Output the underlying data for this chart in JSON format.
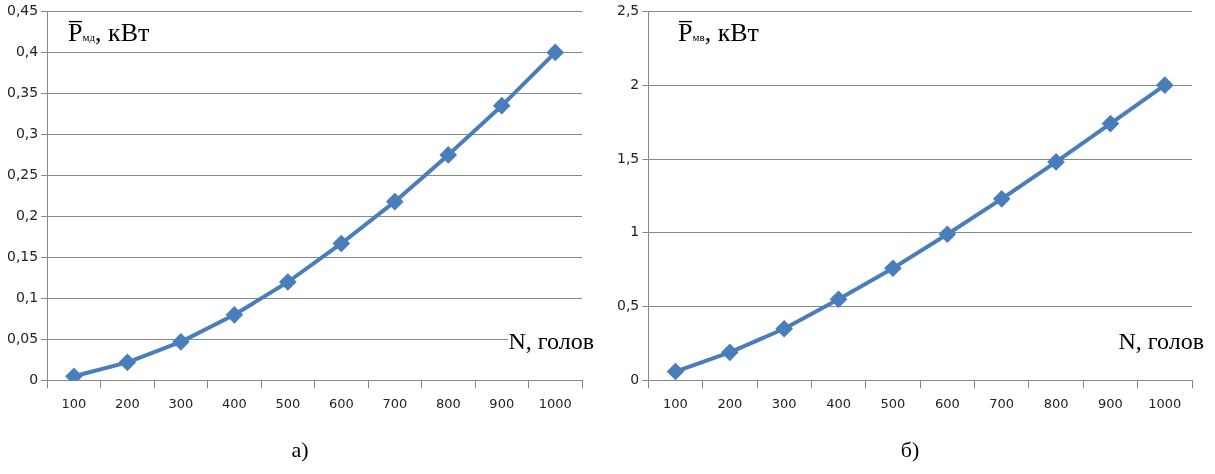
{
  "chart_data": [
    {
      "type": "line",
      "title": "а)",
      "ylabel": "P̅$_{мд}$, кВт",
      "xlabel": "N, голов",
      "categories": [
        "100",
        "200",
        "300",
        "400",
        "500",
        "600",
        "700",
        "800",
        "900",
        "1000"
      ],
      "series": [
        {
          "color": "#4a7ebb",
          "values": [
            0.005,
            0.022,
            0.047,
            0.08,
            0.12,
            0.167,
            0.218,
            0.275,
            0.335,
            0.4
          ]
        }
      ],
      "ylim": [
        0,
        0.45
      ],
      "yticks": [
        0,
        {
          "value": 0.05,
          "label": "0,05"
        },
        {
          "value": 0.1,
          "label": "0,1"
        },
        {
          "value": 0.15,
          "label": "0,15"
        },
        {
          "value": 0.2,
          "label": "0,2"
        },
        {
          "value": 0.25,
          "label": "0,25"
        },
        {
          "value": 0.3,
          "label": "0,3"
        },
        {
          "value": 0.35,
          "label": "0,35"
        },
        {
          "value": 0.4,
          "label": "0,4"
        },
        {
          "value": 0.45,
          "label": "0,45"
        }
      ],
      "grid": "y",
      "legend": false,
      "marker": "diamond",
      "line_style": "solid"
    },
    {
      "type": "line",
      "title": "б)",
      "ylabel": "P̅$_{мв}$, кВт",
      "xlabel": "N, голов",
      "categories": [
        "100",
        "200",
        "300",
        "400",
        "500",
        "600",
        "700",
        "800",
        "900",
        "1000"
      ],
      "series": [
        {
          "color": "#4a7ebb",
          "values": [
            0.06,
            0.19,
            0.35,
            0.55,
            0.76,
            0.99,
            1.23,
            1.48,
            1.74,
            2.0
          ]
        }
      ],
      "ylim": [
        0,
        2.5
      ],
      "yticks": [
        0,
        {
          "value": 0.5,
          "label": "0,5"
        },
        1,
        {
          "value": 1.5,
          "label": "1,5"
        },
        2,
        {
          "value": 2.5,
          "label": "2,5"
        }
      ],
      "grid": "y",
      "legend": false,
      "marker": "diamond",
      "line_style": "solid"
    }
  ]
}
